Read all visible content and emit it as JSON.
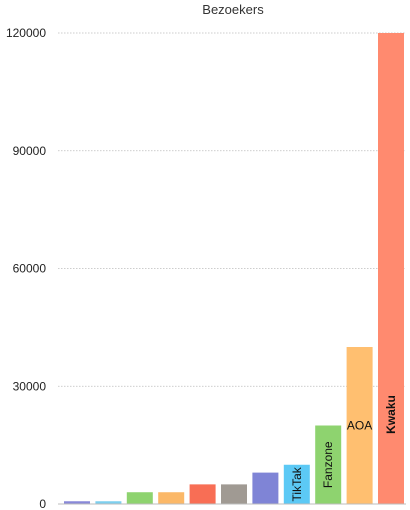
{
  "chart_data": {
    "type": "bar",
    "title": "Bezoekers",
    "xlabel": "",
    "ylabel": "",
    "ylim": [
      0,
      120000
    ],
    "yticks": [
      "0",
      "30000",
      "60000",
      "90000",
      "120000"
    ],
    "grid": true,
    "bars": [
      {
        "label": "",
        "value": 700,
        "color": "#8888d8"
      },
      {
        "label": "",
        "value": 700,
        "color": "#7ccfee"
      },
      {
        "label": "",
        "value": 3000,
        "color": "#8ed36f"
      },
      {
        "label": "",
        "value": 3000,
        "color": "#fbb868"
      },
      {
        "label": "",
        "value": 5000,
        "color": "#f86e55"
      },
      {
        "label": "",
        "value": 5000,
        "color": "#a09a93"
      },
      {
        "label": "",
        "value": 8000,
        "color": "#7f84d6"
      },
      {
        "label": "TikTak",
        "value": 10000,
        "color": "#5cc9f5"
      },
      {
        "label": "Fanzone",
        "value": 20000,
        "color": "#8ed36f"
      },
      {
        "label": "AOA",
        "value": 40000,
        "color": "#ffbf70"
      },
      {
        "label": "Kwaku",
        "value": 120000,
        "color": "#ff8a6f",
        "bold": true
      }
    ]
  }
}
